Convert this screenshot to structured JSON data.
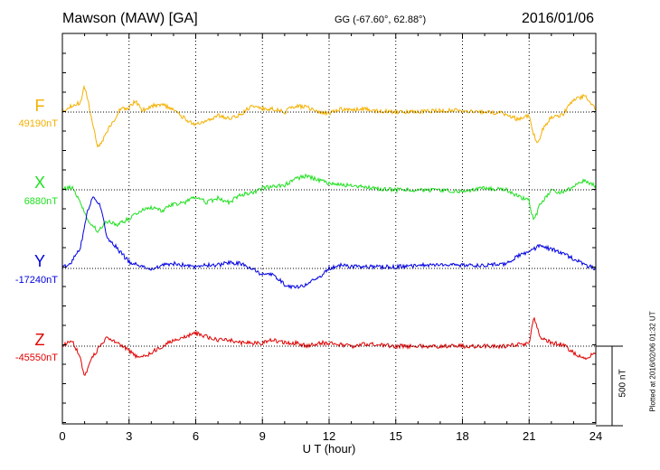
{
  "header": {
    "station": "Mawson (MAW)  [GA]",
    "coords": "GG (-67.60°,  62.88°)",
    "date": "2016/01/06"
  },
  "footer": {
    "plotted_note": "Plotted at 2016/02/06 01:32 UT",
    "scale_label": "500 nT"
  },
  "chart_data": {
    "type": "line",
    "xlabel": "U T (hour)",
    "xlim": [
      0,
      24
    ],
    "xticks": [
      0,
      3,
      6,
      9,
      12,
      15,
      18,
      21,
      24
    ],
    "scale_bar_nT": 500,
    "grid": true,
    "series": [
      {
        "name": "F",
        "baseline_label": "49190nT",
        "baseline_nT": 49190,
        "color": "#f5b000",
        "points": [
          [
            0,
            -10
          ],
          [
            0.4,
            -40
          ],
          [
            0.8,
            -60
          ],
          [
            1.0,
            -160
          ],
          [
            1.2,
            -40
          ],
          [
            1.4,
            100
          ],
          [
            1.6,
            220
          ],
          [
            1.8,
            180
          ],
          [
            2.0,
            120
          ],
          [
            2.3,
            60
          ],
          [
            2.6,
            -20
          ],
          [
            3.0,
            -30
          ],
          [
            3.3,
            -70
          ],
          [
            3.6,
            -10
          ],
          [
            4.0,
            -40
          ],
          [
            4.5,
            -50
          ],
          [
            5.0,
            -10
          ],
          [
            5.5,
            40
          ],
          [
            6.0,
            80
          ],
          [
            6.5,
            60
          ],
          [
            7.0,
            20
          ],
          [
            7.5,
            40
          ],
          [
            8.0,
            20
          ],
          [
            8.5,
            -40
          ],
          [
            9.0,
            -20
          ],
          [
            9.5,
            -20
          ],
          [
            10.0,
            0
          ],
          [
            10.5,
            -40
          ],
          [
            11.0,
            -30
          ],
          [
            11.5,
            0
          ],
          [
            12.0,
            10
          ],
          [
            12.5,
            -20
          ],
          [
            13.0,
            -10
          ],
          [
            13.5,
            -20
          ],
          [
            14.0,
            -10
          ],
          [
            15.0,
            0
          ],
          [
            16.0,
            0
          ],
          [
            17.0,
            -10
          ],
          [
            18.0,
            -10
          ],
          [
            19.0,
            0
          ],
          [
            20.0,
            10
          ],
          [
            20.5,
            50
          ],
          [
            21.0,
            20
          ],
          [
            21.2,
            140
          ],
          [
            21.4,
            200
          ],
          [
            21.6,
            110
          ],
          [
            22.0,
            30
          ],
          [
            22.5,
            20
          ],
          [
            23.0,
            -80
          ],
          [
            23.5,
            -100
          ],
          [
            24.0,
            -20
          ]
        ]
      },
      {
        "name": "X",
        "baseline_label": "6880nT",
        "baseline_nT": 6880,
        "color": "#1fe01f",
        "points": [
          [
            0,
            0
          ],
          [
            0.4,
            -20
          ],
          [
            0.8,
            80
          ],
          [
            1.2,
            200
          ],
          [
            1.6,
            260
          ],
          [
            2.0,
            200
          ],
          [
            2.5,
            220
          ],
          [
            3.0,
            180
          ],
          [
            3.5,
            130
          ],
          [
            4.0,
            110
          ],
          [
            4.5,
            130
          ],
          [
            5.0,
            90
          ],
          [
            5.5,
            80
          ],
          [
            6.0,
            40
          ],
          [
            6.5,
            80
          ],
          [
            7.0,
            50
          ],
          [
            7.5,
            80
          ],
          [
            8.0,
            30
          ],
          [
            8.5,
            20
          ],
          [
            9.0,
            -10
          ],
          [
            9.5,
            -20
          ],
          [
            10.0,
            -30
          ],
          [
            10.5,
            -70
          ],
          [
            11.0,
            -90
          ],
          [
            11.5,
            -60
          ],
          [
            12.0,
            -40
          ],
          [
            12.5,
            -30
          ],
          [
            13.0,
            -30
          ],
          [
            13.5,
            -20
          ],
          [
            14.0,
            -10
          ],
          [
            15.0,
            0
          ],
          [
            16.0,
            0
          ],
          [
            17.0,
            0
          ],
          [
            18.0,
            10
          ],
          [
            19.0,
            -10
          ],
          [
            20.0,
            0
          ],
          [
            20.5,
            40
          ],
          [
            21.0,
            70
          ],
          [
            21.2,
            200
          ],
          [
            21.5,
            90
          ],
          [
            22.0,
            0
          ],
          [
            22.5,
            20
          ],
          [
            23.0,
            -20
          ],
          [
            23.5,
            -60
          ],
          [
            24.0,
            -20
          ]
        ]
      },
      {
        "name": "Y",
        "baseline_label": "-17240nT",
        "baseline_nT": -17240,
        "color": "#0000e0",
        "points": [
          [
            0,
            0
          ],
          [
            0.4,
            -40
          ],
          [
            0.8,
            -120
          ],
          [
            1.1,
            -340
          ],
          [
            1.4,
            -460
          ],
          [
            1.7,
            -400
          ],
          [
            2.0,
            -200
          ],
          [
            2.5,
            -120
          ],
          [
            3.0,
            -40
          ],
          [
            3.5,
            -20
          ],
          [
            4.0,
            0
          ],
          [
            4.5,
            -20
          ],
          [
            5.0,
            -30
          ],
          [
            5.5,
            -20
          ],
          [
            6.0,
            -10
          ],
          [
            6.5,
            -20
          ],
          [
            7.0,
            -20
          ],
          [
            7.5,
            -40
          ],
          [
            8.0,
            -30
          ],
          [
            8.5,
            0
          ],
          [
            9.0,
            40
          ],
          [
            9.5,
            40
          ],
          [
            10.0,
            100
          ],
          [
            10.5,
            120
          ],
          [
            11.0,
            100
          ],
          [
            11.5,
            60
          ],
          [
            12.0,
            0
          ],
          [
            12.5,
            -20
          ],
          [
            13.0,
            -10
          ],
          [
            13.5,
            -10
          ],
          [
            14.0,
            -10
          ],
          [
            15.0,
            -10
          ],
          [
            16.0,
            -20
          ],
          [
            17.0,
            -20
          ],
          [
            18.0,
            -20
          ],
          [
            19.0,
            -20
          ],
          [
            20.0,
            -30
          ],
          [
            20.5,
            -80
          ],
          [
            21.0,
            -100
          ],
          [
            21.5,
            -150
          ],
          [
            22.0,
            -120
          ],
          [
            22.5,
            -100
          ],
          [
            23.0,
            -60
          ],
          [
            23.5,
            -20
          ],
          [
            24.0,
            0
          ]
        ]
      },
      {
        "name": "Z",
        "baseline_label": "-45550nT",
        "baseline_nT": -45550,
        "color": "#e00000",
        "points": [
          [
            0,
            0
          ],
          [
            0.4,
            -40
          ],
          [
            0.8,
            60
          ],
          [
            1.0,
            200
          ],
          [
            1.3,
            80
          ],
          [
            1.7,
            0
          ],
          [
            2.0,
            -60
          ],
          [
            2.5,
            -20
          ],
          [
            3.0,
            30
          ],
          [
            3.5,
            80
          ],
          [
            4.0,
            40
          ],
          [
            4.5,
            0
          ],
          [
            5.0,
            -40
          ],
          [
            5.5,
            -60
          ],
          [
            6.0,
            -80
          ],
          [
            6.5,
            -60
          ],
          [
            7.0,
            -40
          ],
          [
            7.5,
            -40
          ],
          [
            8.0,
            -20
          ],
          [
            8.5,
            -20
          ],
          [
            9.0,
            -20
          ],
          [
            9.5,
            -40
          ],
          [
            10.0,
            -20
          ],
          [
            10.5,
            -20
          ],
          [
            11.0,
            0
          ],
          [
            11.5,
            -20
          ],
          [
            12.0,
            -20
          ],
          [
            12.5,
            -10
          ],
          [
            13.0,
            0
          ],
          [
            13.5,
            -10
          ],
          [
            14.0,
            -10
          ],
          [
            15.0,
            0
          ],
          [
            16.0,
            0
          ],
          [
            17.0,
            0
          ],
          [
            18.0,
            0
          ],
          [
            19.0,
            0
          ],
          [
            20.0,
            0
          ],
          [
            20.5,
            -10
          ],
          [
            21.0,
            -20
          ],
          [
            21.2,
            -180
          ],
          [
            21.5,
            -60
          ],
          [
            22.0,
            -20
          ],
          [
            22.5,
            -10
          ],
          [
            23.0,
            40
          ],
          [
            23.5,
            80
          ],
          [
            24.0,
            40
          ]
        ]
      }
    ]
  }
}
